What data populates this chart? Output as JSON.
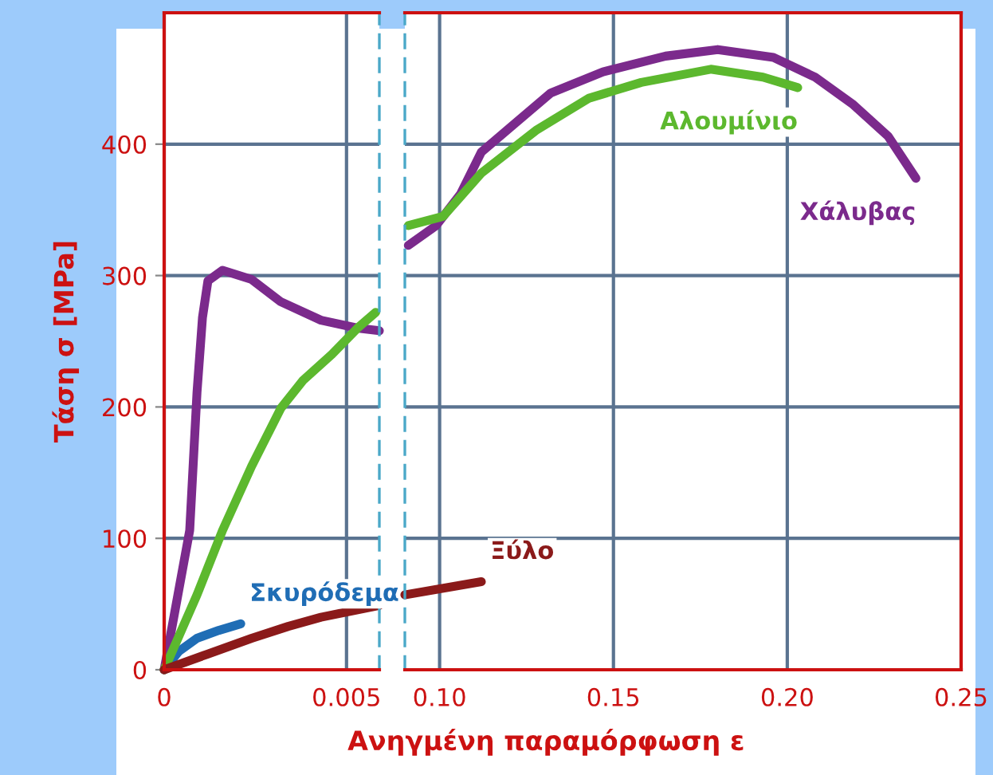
{
  "chart_data": [
    {
      "type": "line",
      "ylabel": "Τάση σ [MPa]",
      "xlabel": "Ανηγμένη παραμόρφωση ε",
      "xlim": [
        0,
        0.0059
      ],
      "xticks": [
        0,
        0.005
      ],
      "ylim": [
        0,
        500
      ],
      "yticks": [
        0,
        100,
        200,
        300,
        400
      ],
      "grid": true,
      "legend": false,
      "marker": "none",
      "line_style": "solid",
      "series": [
        {
          "name": "Σκυρόδεμα",
          "color": "#1f6db5",
          "x": [
            0,
            0.0004,
            0.0009,
            0.0015,
            0.0021
          ],
          "values": [
            0,
            14,
            24,
            30,
            35
          ]
        },
        {
          "color": "#7b2a8c",
          "x": [
            0,
            0.0007,
            0.0009,
            0.00105,
            0.0012,
            0.0016,
            0.0024,
            0.0032,
            0.0043,
            0.0053,
            0.0059
          ],
          "values": [
            0,
            106,
            211,
            268,
            296,
            304,
            297,
            280,
            266,
            260,
            258
          ]
        },
        {
          "color": "#5cb82e",
          "x": [
            0,
            0.0009,
            0.0016,
            0.0024,
            0.0032,
            0.0038,
            0.0046,
            0.0053,
            0.0058
          ],
          "values": [
            0,
            57,
            106,
            155,
            199,
            220,
            240,
            260,
            272
          ]
        },
        {
          "color": "#8b1a1a",
          "x": [
            0,
            0.0012,
            0.0024,
            0.0034,
            0.0043,
            0.0059
          ],
          "values": [
            0,
            12,
            24,
            33,
            40,
            49
          ]
        }
      ]
    },
    {
      "type": "line",
      "xlim": [
        0.09,
        0.25
      ],
      "xticks": [
        {
          "value": 0.1,
          "label": "0.10"
        },
        {
          "value": 0.15,
          "label": "0.15"
        },
        {
          "value": 0.2,
          "label": "0.20"
        },
        {
          "value": 0.25,
          "label": "0.25"
        }
      ],
      "ylim": [
        0,
        500
      ],
      "yticks": [
        0,
        100,
        200,
        300,
        400
      ],
      "tick_labels": "x",
      "grid": true,
      "legend": false,
      "marker": "none",
      "line_style": "solid",
      "series": [
        {
          "name": "Χάλυβας",
          "color": "#7b2a8c",
          "x": [
            0.091,
            0.099,
            0.106,
            0.112,
            0.12,
            0.132,
            0.147,
            0.165,
            0.18,
            0.196,
            0.208,
            0.219,
            0.229,
            0.237
          ],
          "values": [
            323,
            338,
            362,
            394,
            412,
            439,
            455,
            467,
            472,
            466,
            451,
            430,
            406,
            374
          ]
        },
        {
          "name": "Αλουμίνιο",
          "color": "#5cb82e",
          "x": [
            0.091,
            0.101,
            0.112,
            0.128,
            0.143,
            0.158,
            0.178,
            0.193,
            0.203
          ],
          "values": [
            338,
            345,
            378,
            411,
            435,
            447,
            457,
            451,
            443
          ]
        },
        {
          "name": "Ξύλο",
          "color": "#8b1a1a",
          "x": [
            0.09,
            0.112
          ],
          "values": [
            57,
            67
          ]
        }
      ]
    }
  ]
}
